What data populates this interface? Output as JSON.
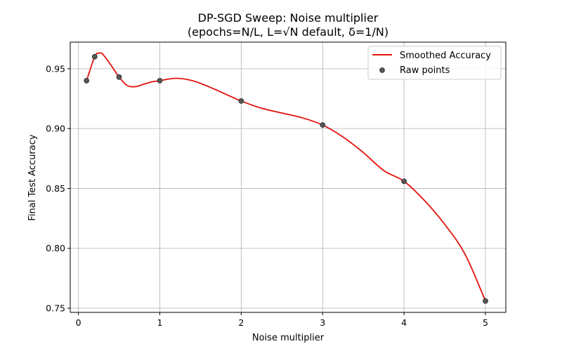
{
  "chart_data": {
    "type": "line",
    "title": "DP-SGD Sweep: Noise multiplier",
    "subtitle": "(epochs=N/L, L=√N default, δ=1/N)",
    "xlabel": "Noise multiplier",
    "ylabel": "Final Test Accuracy",
    "xlim": [
      -0.1,
      5.25
    ],
    "ylim": [
      0.7465,
      0.9722
    ],
    "xticks": [
      0,
      1,
      2,
      3,
      4,
      5
    ],
    "xtick_labels": [
      "0",
      "1",
      "2",
      "3",
      "4",
      "5"
    ],
    "yticks": [
      0.75,
      0.8,
      0.85,
      0.9,
      0.95
    ],
    "ytick_labels": [
      "0.75",
      "0.80",
      "0.85",
      "0.90",
      "0.95"
    ],
    "grid": true,
    "legend_position": "top-right",
    "series": [
      {
        "name": "Smoothed Accuracy",
        "kind": "line",
        "color": "#e3120b",
        "x": [
          0.1,
          0.2,
          0.25,
          0.3,
          0.4,
          0.5,
          0.6,
          0.7,
          0.8,
          0.9,
          1.0,
          1.2,
          1.4,
          1.6,
          1.8,
          2.0,
          2.25,
          2.5,
          2.75,
          3.0,
          3.25,
          3.5,
          3.75,
          4.0,
          4.25,
          4.5,
          4.75,
          5.0
        ],
        "y": [
          0.94,
          0.96,
          0.963,
          0.962,
          0.953,
          0.943,
          0.936,
          0.935,
          0.937,
          0.939,
          0.94,
          0.942,
          0.94,
          0.935,
          0.929,
          0.923,
          0.917,
          0.913,
          0.909,
          0.903,
          0.893,
          0.88,
          0.865,
          0.856,
          0.84,
          0.82,
          0.795,
          0.756
        ]
      },
      {
        "name": "Raw points",
        "kind": "scatter",
        "color": "#555555",
        "x": [
          0.1,
          0.2,
          0.5,
          1.0,
          2.0,
          3.0,
          4.0,
          5.0
        ],
        "y": [
          0.94,
          0.96,
          0.943,
          0.94,
          0.923,
          0.903,
          0.856,
          0.756
        ]
      }
    ]
  }
}
